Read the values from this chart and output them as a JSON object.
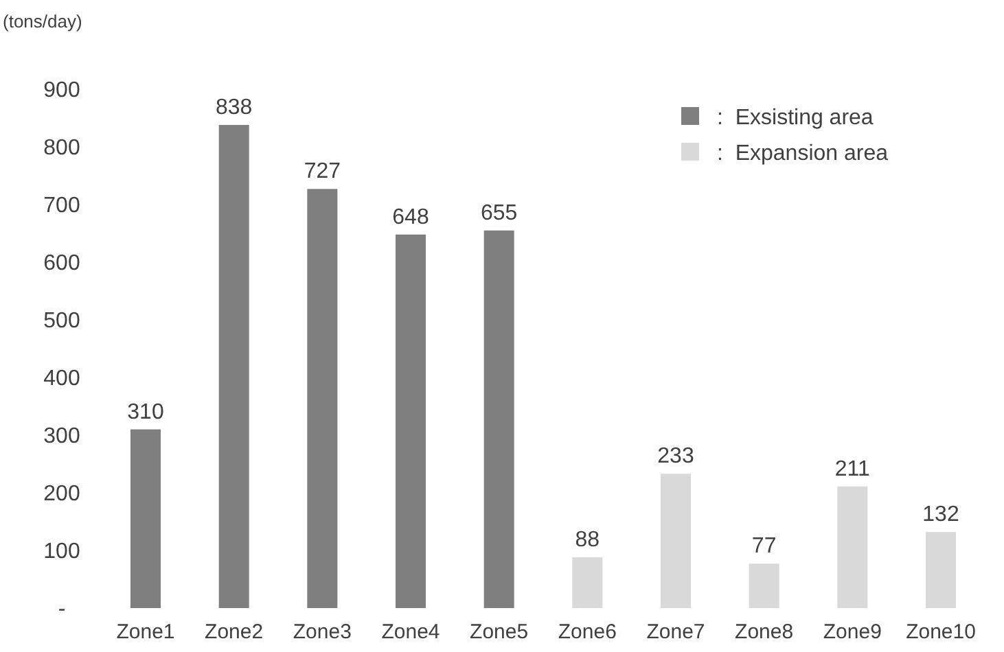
{
  "chart_data": {
    "type": "bar",
    "ylabel": "(tons/day)",
    "categories": [
      "Zone1",
      "Zone2",
      "Zone3",
      "Zone4",
      "Zone5",
      "Zone6",
      "Zone7",
      "Zone8",
      "Zone9",
      "Zone10"
    ],
    "series": [
      {
        "name": ":  Exsisting area",
        "color": "#7f7f7f",
        "values": [
          310,
          838,
          727,
          648,
          655,
          null,
          null,
          null,
          null,
          null
        ]
      },
      {
        "name": ":  Expansion area",
        "color": "#d9d9d9",
        "values": [
          null,
          null,
          null,
          null,
          null,
          88,
          233,
          77,
          211,
          132
        ]
      }
    ],
    "ylim": [
      0,
      900
    ],
    "yticks": [
      {
        "value": 0,
        "label": "-"
      },
      100,
      200,
      300,
      400,
      500,
      600,
      700,
      800,
      900
    ],
    "data_labels": true,
    "legend": "top right",
    "grid": false
  }
}
